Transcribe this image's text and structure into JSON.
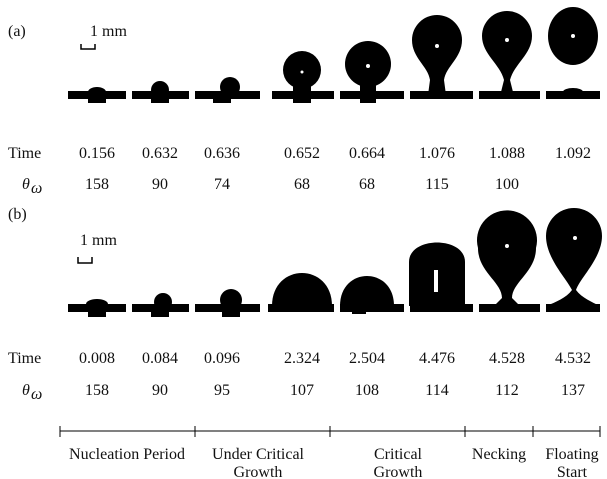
{
  "panels": [
    {
      "label": "(a)",
      "scale": "1 mm",
      "rows": [
        {
          "label": "Time",
          "values": [
            "0.156",
            "0.632",
            "0.636",
            "0.652",
            "0.664",
            "1.076",
            "1.088",
            "1.092"
          ]
        },
        {
          "symbol": "θ",
          "subscript": "ω",
          "values": [
            "158",
            "90",
            "74",
            "68",
            "68",
            "115",
            "100"
          ]
        }
      ]
    },
    {
      "label": "(b)",
      "scale": "1 mm",
      "rows": [
        {
          "label": "Time",
          "values": [
            "0.008",
            "0.084",
            "0.096",
            "2.324",
            "2.504",
            "4.476",
            "4.528",
            "4.532"
          ]
        },
        {
          "symbol": "θ",
          "subscript": "ω",
          "values": [
            "158",
            "90",
            "95",
            "107",
            "108",
            "114",
            "112",
            "137"
          ]
        }
      ]
    }
  ],
  "periods": [
    {
      "lines": [
        "Nucleation Period"
      ]
    },
    {
      "lines": [
        "Under Critical",
        "Growth"
      ]
    },
    {
      "lines": [
        "Critical",
        "Growth"
      ]
    },
    {
      "lines": [
        "Necking"
      ]
    },
    {
      "lines": [
        "Floating",
        "Start"
      ]
    }
  ]
}
